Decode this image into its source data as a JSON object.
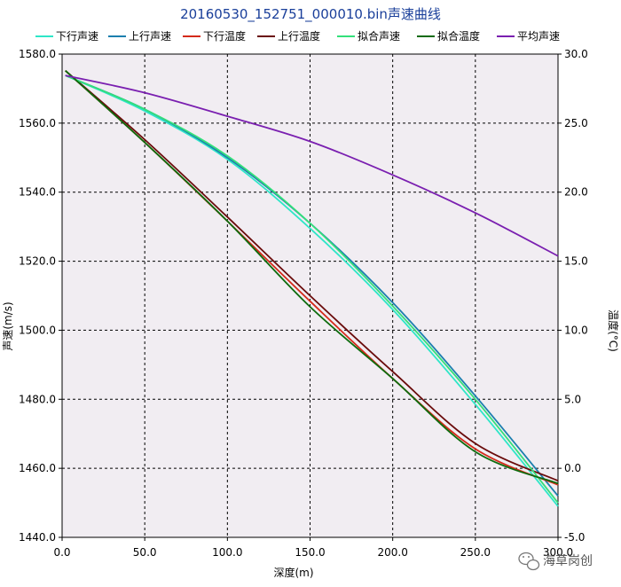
{
  "chart_data": {
    "type": "line",
    "title": "20160530_152751_000010.bin声速曲线",
    "xlabel": "深度(m)",
    "ylabel_left": "声速(m/s)",
    "ylabel_right": "温度(°C)",
    "xlim": [
      0,
      300
    ],
    "ylim_left": [
      1440,
      1580
    ],
    "ylim_right": [
      -5,
      30
    ],
    "x_ticks": [
      "0.0",
      "50.0",
      "100.0",
      "150.0",
      "200.0",
      "250.0",
      "300.0"
    ],
    "y_left_ticks": [
      "1440.0",
      "1460.0",
      "1480.0",
      "1500.0",
      "1520.0",
      "1540.0",
      "1560.0",
      "1580.0"
    ],
    "y_right_ticks": [
      "-5.0",
      "0.0",
      "5.0",
      "10.0",
      "15.0",
      "20.0",
      "25.0",
      "30.0"
    ],
    "grid": true,
    "legend_position": "top",
    "series": [
      {
        "name": "下行声速",
        "axis": "left",
        "color": "#2ee6c8",
        "x": [
          2,
          50,
          100,
          150,
          200,
          250,
          300
        ],
        "y": [
          1573.8,
          1563.5,
          1549.5,
          1529.5,
          1506,
          1478.5,
          1449
        ]
      },
      {
        "name": "上行声速",
        "axis": "left",
        "color": "#1c7fae",
        "x": [
          2,
          50,
          100,
          150,
          200,
          250,
          300
        ],
        "y": [
          1573.8,
          1564,
          1550,
          1531,
          1508,
          1481,
          1452
        ]
      },
      {
        "name": "下行温度",
        "axis": "right",
        "color": "#d42a1a",
        "x": [
          2,
          50,
          100,
          150,
          200,
          250,
          300
        ],
        "y": [
          28.8,
          23.6,
          17.9,
          12.1,
          6.5,
          1.4,
          -1.2
        ]
      },
      {
        "name": "上行温度",
        "axis": "right",
        "color": "#6a0b0b",
        "x": [
          2,
          50,
          100,
          150,
          200,
          250,
          300
        ],
        "y": [
          28.8,
          23.8,
          18.2,
          12.5,
          7.0,
          1.8,
          -0.9
        ]
      },
      {
        "name": "拟合声速",
        "axis": "left",
        "color": "#33e07a",
        "x": [
          2,
          50,
          100,
          150,
          200,
          250,
          300
        ],
        "y": [
          1573.8,
          1564,
          1550.5,
          1531,
          1507,
          1480,
          1450
        ]
      },
      {
        "name": "拟合温度",
        "axis": "right",
        "color": "#0d6b0d",
        "x": [
          2,
          50,
          100,
          150,
          200,
          250,
          300
        ],
        "y": [
          28.8,
          23.6,
          17.9,
          11.7,
          6.5,
          1.2,
          -1.1
        ]
      },
      {
        "name": "平均声速",
        "axis": "left",
        "color": "#7a1fb0",
        "x": [
          2,
          50,
          100,
          150,
          200,
          250,
          300
        ],
        "y": [
          1573.8,
          1568.8,
          1562,
          1554.7,
          1545,
          1534,
          1521.5
        ]
      }
    ]
  },
  "watermark": {
    "text": "海草岗创",
    "icon": "wechat-logo-icon"
  }
}
